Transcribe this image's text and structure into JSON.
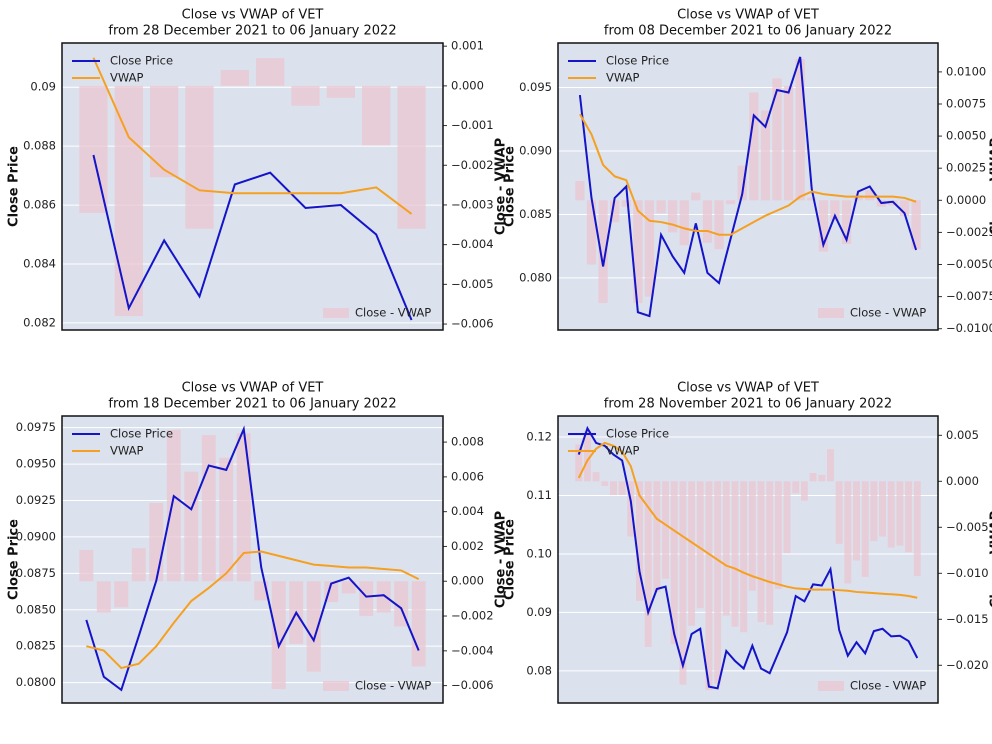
{
  "chart_data": [
    {
      "type": "line",
      "title": "Close vs VWAP of VET",
      "subtitle": "from 28 December 2021 to 06 January 2022",
      "y_label": "Close Price",
      "y2_label": "Close - VWAP",
      "grid": true,
      "ylim": [
        0.08176,
        0.0915
      ],
      "yticks": [
        0.082,
        0.084,
        0.086,
        0.088,
        0.09
      ],
      "y2lim": [
        -0.00615,
        0.00108
      ],
      "y2ticks": [
        0.001,
        {
          "value": 0,
          "label": "0.000"
        },
        {
          "value": -0.001,
          "label": "−0.001"
        },
        {
          "value": -0.002,
          "label": "−0.002"
        },
        {
          "value": -0.003,
          "label": "−0.003"
        },
        {
          "value": -0.004,
          "label": "−0.004"
        },
        {
          "value": -0.005,
          "label": "−0.005"
        },
        {
          "value": -0.006,
          "label": "−0.006"
        }
      ],
      "series": [
        {
          "name": "Close Price",
          "color": "#1414c8",
          "values": [
            0.0877,
            0.0825,
            0.0848,
            0.0829,
            0.0867,
            0.0871,
            0.0859,
            0.086,
            0.085,
            0.0821
          ]
        },
        {
          "name": "VWAP",
          "color": "#f5a020",
          "values": [
            0.091,
            0.0883,
            0.0872,
            0.0865,
            0.0864,
            0.0864,
            0.0864,
            0.0864,
            0.0866,
            0.0857
          ]
        },
        {
          "name": "Close - VWAP",
          "type": "bar",
          "axis": "y2",
          "color": "#ebc5d0",
          "values": [
            -0.0032,
            -0.0058,
            -0.0023,
            -0.0036,
            0.0004,
            0.0007,
            -0.0005,
            -0.0003,
            -0.0015,
            -0.0036
          ]
        }
      ]
    },
    {
      "type": "line",
      "title": "Close vs VWAP of VET",
      "subtitle": "from 08 December 2021 to 06 January 2022",
      "y_label": "Close Price",
      "y2_label": "Close - VWAP",
      "grid": true,
      "ylim": [
        0.0759,
        0.0985
      ],
      "yticks": [
        {
          "value": 0.08,
          "label": "0.080"
        },
        0.085,
        {
          "value": 0.09,
          "label": "0.090"
        },
        0.095
      ],
      "y2lim": [
        -0.0101,
        0.01225
      ],
      "y2ticks": [
        {
          "value": 0.01,
          "label": "0.0100"
        },
        0.0075,
        {
          "value": 0.005,
          "label": "0.0050"
        },
        0.0025,
        {
          "value": 0,
          "label": "0.0000"
        },
        {
          "value": -0.0025,
          "label": "−0.0025"
        },
        {
          "value": -0.005,
          "label": "−0.0050"
        },
        {
          "value": -0.0075,
          "label": "−0.0075"
        },
        {
          "value": -0.01,
          "label": "−0.0100"
        }
      ],
      "series": [
        {
          "name": "Close Price",
          "color": "#1414c8",
          "values": [
            0.0944,
            0.0863,
            0.0809,
            0.0863,
            0.0872,
            0.0773,
            0.077,
            0.0834,
            0.0817,
            0.0804,
            0.0843,
            0.0804,
            0.0796,
            0.0831,
            0.0866,
            0.0928,
            0.0919,
            0.0948,
            0.0946,
            0.0974,
            0.087,
            0.0826,
            0.0849,
            0.083,
            0.0868,
            0.0872,
            0.0859,
            0.086,
            0.0851,
            0.0822
          ]
        },
        {
          "name": "VWAP",
          "color": "#f5a020",
          "values": [
            0.0929,
            0.0913,
            0.0889,
            0.088,
            0.0877,
            0.0853,
            0.0845,
            0.0844,
            0.0842,
            0.0839,
            0.0837,
            0.0837,
            0.0834,
            0.0834,
            0.0839,
            0.0844,
            0.0849,
            0.0853,
            0.0857,
            0.0864,
            0.0868,
            0.0866,
            0.0865,
            0.0864,
            0.0864,
            0.0864,
            0.0864,
            0.0864,
            0.0863,
            0.086
          ]
        },
        {
          "name": "Close - VWAP",
          "type": "bar",
          "axis": "y2",
          "color": "#ebc5d0",
          "values": [
            0.0015,
            -0.005,
            -0.008,
            -0.0017,
            -0.0005,
            -0.008,
            -0.0075,
            -0.001,
            -0.0025,
            -0.0035,
            0.0006,
            -0.0033,
            -0.0038,
            -0.0003,
            0.0027,
            0.0084,
            0.007,
            0.0095,
            0.0089,
            0.011,
            0.0002,
            -0.004,
            -0.0016,
            -0.0034,
            0.0004,
            0.0008,
            -0.0005,
            -0.0004,
            -0.0012,
            -0.0038
          ]
        }
      ]
    },
    {
      "type": "line",
      "title": "Close vs VWAP of VET",
      "subtitle": "from 18 December 2021 to 06 January 2022",
      "y_label": "Close Price",
      "y2_label": "Close - VWAP",
      "grid": true,
      "ylim": [
        0.0786,
        0.0983
      ],
      "yticks": [
        {
          "value": 0.08,
          "label": "0.0800"
        },
        0.0825,
        {
          "value": 0.085,
          "label": "0.0850"
        },
        0.0875,
        {
          "value": 0.09,
          "label": "0.0900"
        },
        0.0925,
        {
          "value": 0.095,
          "label": "0.0950"
        },
        0.0975
      ],
      "y2lim": [
        -0.007,
        0.0095
      ],
      "y2ticks": [
        0.008,
        0.006,
        0.004,
        0.002,
        {
          "value": 0,
          "label": "0.000"
        },
        {
          "value": -0.002,
          "label": "−0.002"
        },
        {
          "value": -0.004,
          "label": "−0.004"
        },
        {
          "value": -0.006,
          "label": "−0.006"
        }
      ],
      "series": [
        {
          "name": "Close Price",
          "color": "#1414c8",
          "values": [
            0.0843,
            0.0804,
            0.0795,
            0.0832,
            0.087,
            0.0928,
            0.0919,
            0.0949,
            0.0946,
            0.0974,
            0.0879,
            0.0825,
            0.0848,
            0.0829,
            0.0868,
            0.0872,
            0.0859,
            0.086,
            0.0851,
            0.0822
          ]
        },
        {
          "name": "VWAP",
          "color": "#f5a020",
          "values": [
            0.0825,
            0.0822,
            0.081,
            0.0813,
            0.0825,
            0.0841,
            0.0856,
            0.0865,
            0.0875,
            0.0889,
            0.089,
            0.0887,
            0.0884,
            0.0881,
            0.088,
            0.0879,
            0.0879,
            0.0878,
            0.0877,
            0.0871
          ]
        },
        {
          "name": "Close - VWAP",
          "type": "bar",
          "axis": "y2",
          "color": "#ebc5d0",
          "values": [
            0.0018,
            -0.0018,
            -0.0015,
            0.0019,
            0.0045,
            0.0087,
            0.0063,
            0.0084,
            0.0071,
            0.0085,
            -0.0011,
            -0.0062,
            -0.0036,
            -0.0052,
            -0.0012,
            -0.0007,
            -0.002,
            -0.0018,
            -0.0026,
            -0.0049
          ]
        }
      ]
    },
    {
      "type": "line",
      "title": "Close vs VWAP of VET",
      "subtitle": "from 28 November 2021 to 06 January 2022",
      "y_label": "Close Price",
      "y2_label": "Close - VWAP",
      "grid": true,
      "ylim": [
        0.0745,
        0.1236
      ],
      "yticks": [
        0.08,
        0.09,
        {
          "value": 0.1,
          "label": "0.10"
        },
        0.11,
        0.12
      ],
      "y2lim": [
        -0.0241,
        0.0071
      ],
      "y2ticks": [
        0.005,
        {
          "value": 0,
          "label": "0.000"
        },
        {
          "value": -0.005,
          "label": "−0.005"
        },
        {
          "value": -0.01,
          "label": "−0.010"
        },
        {
          "value": -0.015,
          "label": "−0.015"
        },
        {
          "value": -0.02,
          "label": "−0.020"
        }
      ],
      "series": [
        {
          "name": "Close Price",
          "color": "#1414c8",
          "values": [
            0.117,
            0.1215,
            0.119,
            0.1185,
            0.117,
            0.116,
            0.109,
            0.097,
            0.09,
            0.094,
            0.0944,
            0.0863,
            0.0809,
            0.0863,
            0.0872,
            0.0773,
            0.077,
            0.0834,
            0.0817,
            0.0804,
            0.0843,
            0.0804,
            0.0796,
            0.0831,
            0.0866,
            0.0928,
            0.0919,
            0.0948,
            0.0946,
            0.0974,
            0.087,
            0.0826,
            0.0849,
            0.083,
            0.0868,
            0.0872,
            0.0859,
            0.086,
            0.0851,
            0.0822
          ]
        },
        {
          "name": "VWAP",
          "color": "#f5a020",
          "values": [
            0.113,
            0.116,
            0.118,
            0.119,
            0.1185,
            0.1175,
            0.115,
            0.11,
            0.108,
            0.106,
            0.105,
            0.104,
            0.103,
            0.102,
            0.101,
            0.1,
            0.099,
            0.098,
            0.0975,
            0.0968,
            0.0962,
            0.0957,
            0.0952,
            0.0948,
            0.0944,
            0.0941,
            0.094,
            0.0939,
            0.0939,
            0.0939,
            0.0938,
            0.0937,
            0.0935,
            0.0934,
            0.0933,
            0.0932,
            0.0931,
            0.093,
            0.0928,
            0.0925
          ]
        },
        {
          "name": "Close - VWAP",
          "type": "bar",
          "axis": "y2",
          "color": "#ebc5d0",
          "values": [
            0.004,
            0.0055,
            0.001,
            -0.0005,
            -0.0015,
            -0.0015,
            -0.006,
            -0.013,
            -0.018,
            -0.012,
            -0.0106,
            -0.0177,
            -0.0221,
            -0.0157,
            -0.0138,
            -0.0227,
            -0.022,
            -0.0146,
            -0.0158,
            -0.0164,
            -0.0119,
            -0.0153,
            -0.0156,
            -0.0117,
            -0.0078,
            -0.0013,
            -0.0021,
            0.0009,
            0.0007,
            0.0035,
            -0.0068,
            -0.0111,
            -0.0086,
            -0.0104,
            -0.0065,
            -0.006,
            -0.0072,
            -0.007,
            -0.0077,
            -0.0103
          ]
        }
      ]
    }
  ]
}
